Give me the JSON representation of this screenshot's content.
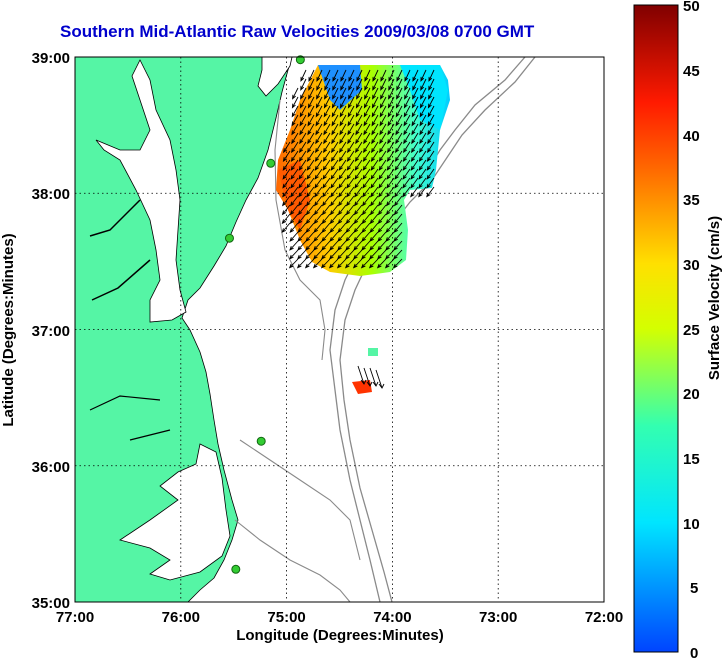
{
  "title": "Southern Mid-Atlantic Raw Velocities 2009/03/08 0700 GMT",
  "xlabel": "Longitude (Degrees:Minutes)",
  "ylabel": "Latitude (Degrees:Minutes)",
  "x_ticks": [
    "77:00",
    "76:00",
    "75:00",
    "74:00",
    "73:00",
    "72:00"
  ],
  "y_ticks": [
    "39:00",
    "38:00",
    "37:00",
    "36:00",
    "35:00"
  ],
  "colorbar": {
    "label": "Surface Velocity (cm/s)",
    "ticks": [
      "50",
      "45",
      "40",
      "35",
      "30",
      "25",
      "20",
      "15",
      "10",
      "5",
      "0"
    ],
    "range": [
      0,
      50
    ]
  },
  "colors": {
    "land": "#55f5a5",
    "ocean": "#ffffff",
    "bathymetry": "#8a8a8a",
    "coastline": "#000000",
    "title": "#0000cc",
    "station": "#33cc33"
  },
  "map": {
    "lon_range": [
      -77,
      -72
    ],
    "lat_range": [
      35,
      39
    ],
    "grid": true,
    "stations": [
      {
        "lon": -74.87,
        "lat": 38.98
      },
      {
        "lon": -75.15,
        "lat": 38.22
      },
      {
        "lon": -75.54,
        "lat": 37.67
      },
      {
        "lon": -75.24,
        "lat": 36.18
      },
      {
        "lon": -75.48,
        "lat": 35.24
      }
    ]
  }
}
